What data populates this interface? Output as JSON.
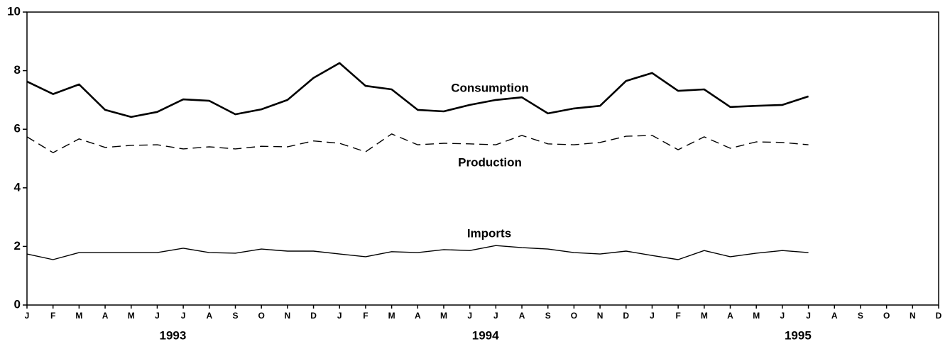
{
  "chart_data": {
    "type": "line",
    "categories": [
      "J",
      "F",
      "M",
      "A",
      "M",
      "J",
      "J",
      "A",
      "S",
      "O",
      "N",
      "D",
      "J",
      "F",
      "M",
      "A",
      "M",
      "J",
      "J",
      "A",
      "S",
      "O",
      "N",
      "D",
      "J",
      "F",
      "M",
      "A",
      "M",
      "J",
      "J",
      "A",
      "S",
      "O",
      "N",
      "D"
    ],
    "year_labels": [
      "1993",
      "1994",
      "1995"
    ],
    "series": [
      {
        "name": "Consumption",
        "color": "#000000",
        "style": "bold",
        "values": [
          7.63,
          7.2,
          7.53,
          6.66,
          6.42,
          6.59,
          7.02,
          6.97,
          6.51,
          6.68,
          7.0,
          7.75,
          8.26,
          7.48,
          7.36,
          6.66,
          6.61,
          6.83,
          7.0,
          7.09,
          6.54,
          6.71,
          6.8,
          7.65,
          7.92,
          7.31,
          7.36,
          6.76,
          6.8,
          6.83,
          7.12,
          null,
          null,
          null,
          null,
          null
        ]
      },
      {
        "name": "Production",
        "color": "#000000",
        "style": "dashed",
        "values": [
          5.74,
          5.2,
          5.67,
          5.38,
          5.45,
          5.47,
          5.33,
          5.4,
          5.33,
          5.42,
          5.4,
          5.6,
          5.52,
          5.23,
          5.84,
          5.47,
          5.52,
          5.5,
          5.47,
          5.79,
          5.5,
          5.47,
          5.55,
          5.76,
          5.79,
          5.3,
          5.74,
          5.35,
          5.57,
          5.55,
          5.47,
          null,
          null,
          null,
          null,
          null
        ]
      },
      {
        "name": "Imports",
        "color": "#000000",
        "style": "solid",
        "values": [
          1.74,
          1.55,
          1.79,
          1.79,
          1.79,
          1.79,
          1.94,
          1.79,
          1.77,
          1.91,
          1.84,
          1.84,
          1.74,
          1.65,
          1.82,
          1.79,
          1.89,
          1.86,
          2.03,
          1.96,
          1.91,
          1.79,
          1.74,
          1.84,
          1.69,
          1.55,
          1.86,
          1.65,
          1.77,
          1.86,
          1.79,
          null,
          null,
          null,
          null,
          null
        ]
      }
    ],
    "ylim": [
      0,
      10
    ],
    "yticks": [
      0,
      2,
      4,
      6,
      8,
      10
    ],
    "grid": false
  }
}
